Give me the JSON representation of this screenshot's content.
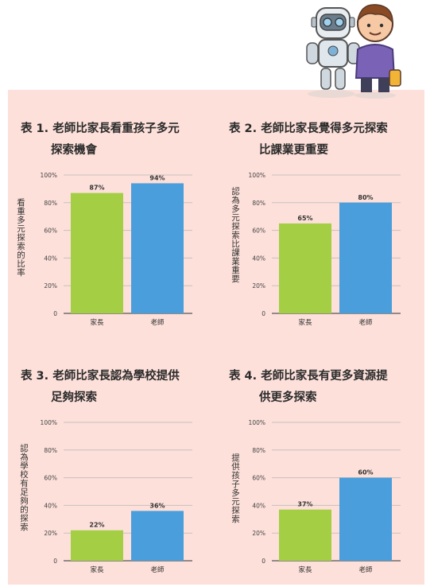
{
  "chart_data": [
    {
      "type": "bar",
      "title_num": "表 1.",
      "title_line1": "老師比家長看重孩子多元",
      "title_line2": "探索機會",
      "ylabel": "看重多元探索的比率",
      "categories": [
        "家長",
        "老師"
      ],
      "values": [
        87,
        94
      ],
      "value_labels": [
        "87%",
        "94%"
      ],
      "ylim": [
        0,
        100
      ],
      "yticks": [
        "0",
        "20%",
        "40%",
        "60%",
        "80%",
        "100%"
      ]
    },
    {
      "type": "bar",
      "title_num": "表 2.",
      "title_line1": "老師比家長覺得多元探索",
      "title_line2": "比課業更重要",
      "ylabel": "認為多元探索比課業重要",
      "categories": [
        "家長",
        "老師"
      ],
      "values": [
        65,
        80
      ],
      "value_labels": [
        "65%",
        "80%"
      ],
      "ylim": [
        0,
        100
      ],
      "yticks": [
        "0",
        "20%",
        "40%",
        "60%",
        "80%",
        "100%"
      ]
    },
    {
      "type": "bar",
      "title_num": "表 3.",
      "title_line1": "老師比家長認為學校提供",
      "title_line2": "足夠探索",
      "ylabel": "認為學校有足夠的探索",
      "categories": [
        "家長",
        "老師"
      ],
      "values": [
        22,
        36
      ],
      "value_labels": [
        "22%",
        "36%"
      ],
      "ylim": [
        0,
        100
      ],
      "yticks": [
        "0",
        "20%",
        "40%",
        "60%",
        "80%",
        "100%"
      ]
    },
    {
      "type": "bar",
      "title_num": "表 4.",
      "title_line1": "老師比家長有更多資源提",
      "title_line2": "供更多探索",
      "ylabel": "提供孩子多元探索",
      "categories": [
        "家長",
        "老師"
      ],
      "values": [
        37,
        60
      ],
      "value_labels": [
        "37%",
        "60%"
      ],
      "ylim": [
        0,
        100
      ],
      "yticks": [
        "0",
        "20%",
        "40%",
        "60%",
        "80%",
        "100%"
      ]
    }
  ],
  "colors": {
    "parent_bar": "#a4cf45",
    "teacher_bar": "#4a9edb",
    "panel_bg": "#fde0da",
    "grid": "#c9bfbd"
  },
  "illustration": {
    "robot_icon": "robot-icon",
    "boy_icon": "boy-with-tools-icon"
  }
}
